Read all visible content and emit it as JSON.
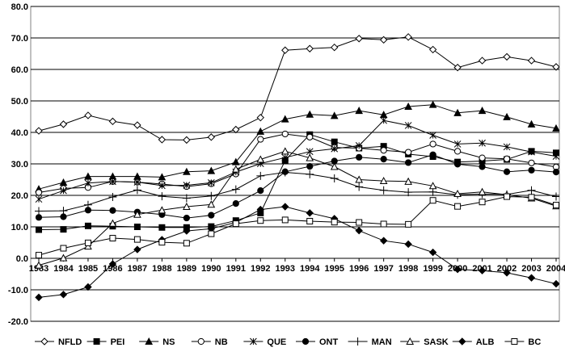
{
  "chart_data": {
    "type": "line",
    "x": [
      "1983",
      "1984",
      "1985",
      "1986",
      "1987",
      "1988",
      "1989",
      "1990",
      "1991",
      "1992",
      "1993",
      "1994",
      "1995",
      "1996",
      "1997",
      "1998",
      "1999",
      "2000",
      "2001",
      "2002",
      "2003",
      "2004"
    ],
    "ylim": [
      -20,
      80
    ],
    "yticks": [
      "-20.0",
      "-10.0",
      "0.0",
      "10.0",
      "20.0",
      "30.0",
      "40.0",
      "50.0",
      "60.0",
      "70.0",
      "80.0"
    ],
    "grid": true,
    "legend_position": "bottom",
    "series": [
      {
        "name": "NFLD",
        "marker": "diamond-open",
        "values": [
          40.5,
          42.6,
          45.4,
          43.5,
          42.3,
          37.7,
          37.6,
          38.5,
          40.9,
          44.7,
          66.1,
          66.6,
          67.0,
          69.8,
          69.4,
          70.3,
          66.3,
          60.6,
          62.8,
          64.0,
          62.8,
          60.8
        ]
      },
      {
        "name": "PEI",
        "marker": "square-filled",
        "values": [
          9.1,
          9.2,
          10.3,
          10.2,
          10.0,
          9.8,
          9.8,
          10.1,
          12.0,
          14.4,
          31.1,
          39.3,
          37.0,
          35.0,
          35.6,
          33.1,
          32.3,
          30.6,
          30.9,
          31.4,
          34.0,
          33.5
        ]
      },
      {
        "name": "NS",
        "marker": "triangle-filled",
        "values": [
          22.0,
          24.1,
          26.0,
          26.0,
          26.0,
          25.8,
          27.5,
          27.8,
          30.6,
          40.3,
          44.2,
          45.7,
          45.3,
          46.9,
          45.6,
          48.2,
          48.8,
          46.2,
          46.9,
          44.9,
          42.6,
          41.3
        ]
      },
      {
        "name": "NB",
        "marker": "circle-open",
        "values": [
          20.9,
          22.2,
          22.5,
          24.4,
          24.2,
          23.6,
          22.8,
          23.7,
          26.8,
          37.8,
          39.5,
          38.5,
          35.2,
          35.0,
          34.3,
          33.7,
          36.3,
          34.0,
          31.9,
          31.6,
          30.3,
          29.0
        ]
      },
      {
        "name": "QUE",
        "marker": "star",
        "values": [
          18.8,
          21.5,
          23.9,
          24.4,
          24.2,
          23.1,
          23.2,
          24.0,
          27.4,
          30.1,
          32.0,
          33.9,
          34.8,
          35.8,
          43.8,
          42.2,
          39.1,
          36.3,
          36.6,
          35.4,
          33.8,
          32.4
        ]
      },
      {
        "name": "ONT",
        "marker": "circle-filled",
        "values": [
          13.0,
          13.2,
          15.3,
          15.2,
          14.7,
          13.9,
          12.8,
          13.7,
          17.4,
          21.5,
          27.5,
          29.2,
          30.9,
          32.1,
          31.5,
          30.4,
          32.9,
          29.9,
          29.1,
          27.5,
          28.0,
          27.4
        ]
      },
      {
        "name": "MAN",
        "marker": "plus",
        "values": [
          15.0,
          15.1,
          17.0,
          19.5,
          21.7,
          19.7,
          19.1,
          19.8,
          21.9,
          26.2,
          27.3,
          26.7,
          25.4,
          22.7,
          21.6,
          21.0,
          21.1,
          20.2,
          20.4,
          20.3,
          21.6,
          19.6
        ]
      },
      {
        "name": "SASK",
        "marker": "triangle-open",
        "values": [
          -2.2,
          0.1,
          3.8,
          11.1,
          13.9,
          15.3,
          16.4,
          17.1,
          28.3,
          31.4,
          34.0,
          31.9,
          29.1,
          25.0,
          24.6,
          24.4,
          23.0,
          20.5,
          21.1,
          20.2,
          19.1,
          16.6
        ]
      },
      {
        "name": "ALB",
        "marker": "diamond-filled",
        "values": [
          -12.4,
          -11.5,
          -9.1,
          -1.8,
          2.8,
          5.9,
          8.7,
          9.4,
          11.4,
          15.5,
          16.4,
          14.4,
          12.6,
          8.8,
          5.6,
          4.5,
          1.9,
          -3.5,
          -3.9,
          -4.6,
          -6.2,
          -8.1
        ]
      },
      {
        "name": "BC",
        "marker": "square-open",
        "values": [
          1.0,
          3.2,
          4.9,
          6.4,
          6.0,
          5.1,
          4.8,
          7.8,
          11.0,
          12.0,
          12.2,
          11.8,
          11.5,
          11.4,
          10.9,
          10.8,
          18.4,
          16.5,
          17.9,
          19.6,
          19.4,
          16.9
        ]
      }
    ]
  }
}
